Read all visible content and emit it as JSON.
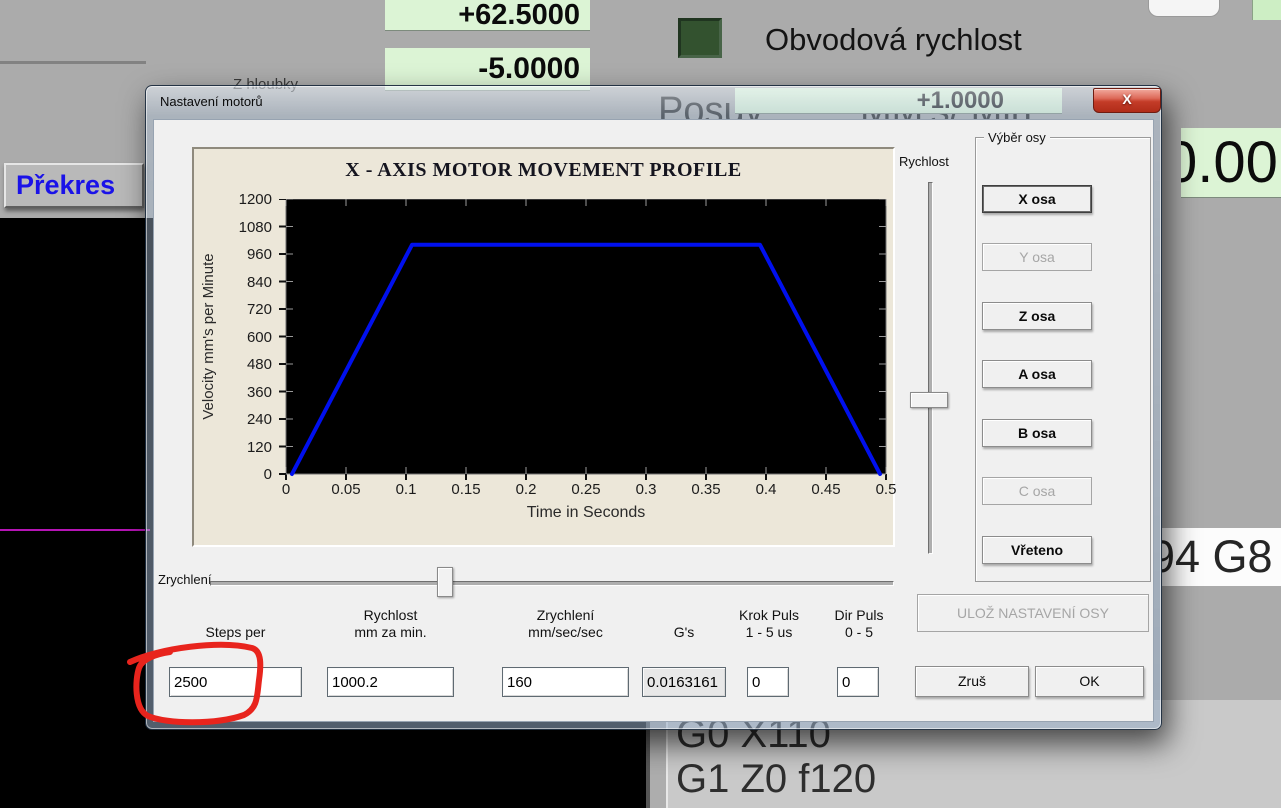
{
  "app": {
    "dro_top": "+62.5000",
    "dro_mid": "-5.0000",
    "dro_small": "+1.0000",
    "dro_right": "0.00",
    "led_label": "Obvodová rychlost",
    "posuv_label": "Posuv",
    "units_label": "MM's/ Min",
    "depth_label": "Z hloubky",
    "redraw_button": "Překres",
    "modal_gcode": "94 G8",
    "gcode_line1": "G0 X110",
    "gcode_line2": "G1 Z0 f120",
    "colors": {
      "dro_bg": "#dcf4d5",
      "led_green": "#33522f",
      "annotation_red": "#e8241d",
      "magenta_line": "#b514b5"
    }
  },
  "dialog": {
    "title": "Nastavení motorů",
    "close_label": "X",
    "rychlost_label": "Rychlost",
    "zrychleni_label": "Zrychlení",
    "axis_group_title": "Výběr osy",
    "axis_buttons": [
      {
        "label": "X osa",
        "enabled": true,
        "focused": true
      },
      {
        "label": "Y osa",
        "enabled": false,
        "focused": false
      },
      {
        "label": "Z osa",
        "enabled": true,
        "focused": false
      },
      {
        "label": "A osa",
        "enabled": true,
        "focused": false
      },
      {
        "label": "B osa",
        "enabled": true,
        "focused": false
      },
      {
        "label": "C osa",
        "enabled": false,
        "focused": false
      },
      {
        "label": "Vřeteno",
        "enabled": true,
        "focused": false
      }
    ],
    "fields": [
      {
        "line1": "",
        "line2": "Steps per",
        "value": "2500",
        "readonly": false
      },
      {
        "line1": "Rychlost",
        "line2": "mm za min.",
        "value": "1000.2",
        "readonly": false
      },
      {
        "line1": "Zrychlení",
        "line2": "mm/sec/sec",
        "value": "160",
        "readonly": false
      },
      {
        "line1": "",
        "line2": "G's",
        "value": "0.0163161",
        "readonly": true
      },
      {
        "line1": "Krok Puls",
        "line2": "1 - 5 us",
        "value": "0",
        "readonly": false
      },
      {
        "line1": "Dir Puls",
        "line2": "0 - 5",
        "value": "0",
        "readonly": false
      }
    ],
    "save_button": "ULOŽ NASTAVENÍ OSY",
    "cancel_button": "Zruš",
    "ok_button": "OK"
  },
  "chart_data": {
    "type": "line",
    "title": "X - AXIS MOTOR MOVEMENT PROFILE",
    "xlabel": "Time in Seconds",
    "ylabel": "Velocity mm's per Minute",
    "xlim": [
      0,
      0.5
    ],
    "ylim": [
      0,
      1200
    ],
    "xticks": [
      0,
      0.05,
      0.1,
      0.15,
      0.2,
      0.25,
      0.3,
      0.35,
      0.4,
      0.45,
      0.5
    ],
    "xtick_labels": [
      "0",
      "0.05",
      "0.1",
      "0.15",
      "0.2",
      "0.25",
      "0.3",
      "0.35",
      "0.4",
      "0.45",
      "0.5"
    ],
    "yticks": [
      0,
      120,
      240,
      360,
      480,
      600,
      720,
      840,
      960,
      1080,
      1200
    ],
    "grid": false,
    "plot_bg": "#000000",
    "panel_bg": "#ece7d9",
    "series": [
      {
        "name": "velocity-profile",
        "color": "#0010ee",
        "points": [
          [
            0.005,
            0
          ],
          [
            0.105,
            1000
          ],
          [
            0.395,
            1000
          ],
          [
            0.495,
            0
          ]
        ]
      }
    ]
  }
}
